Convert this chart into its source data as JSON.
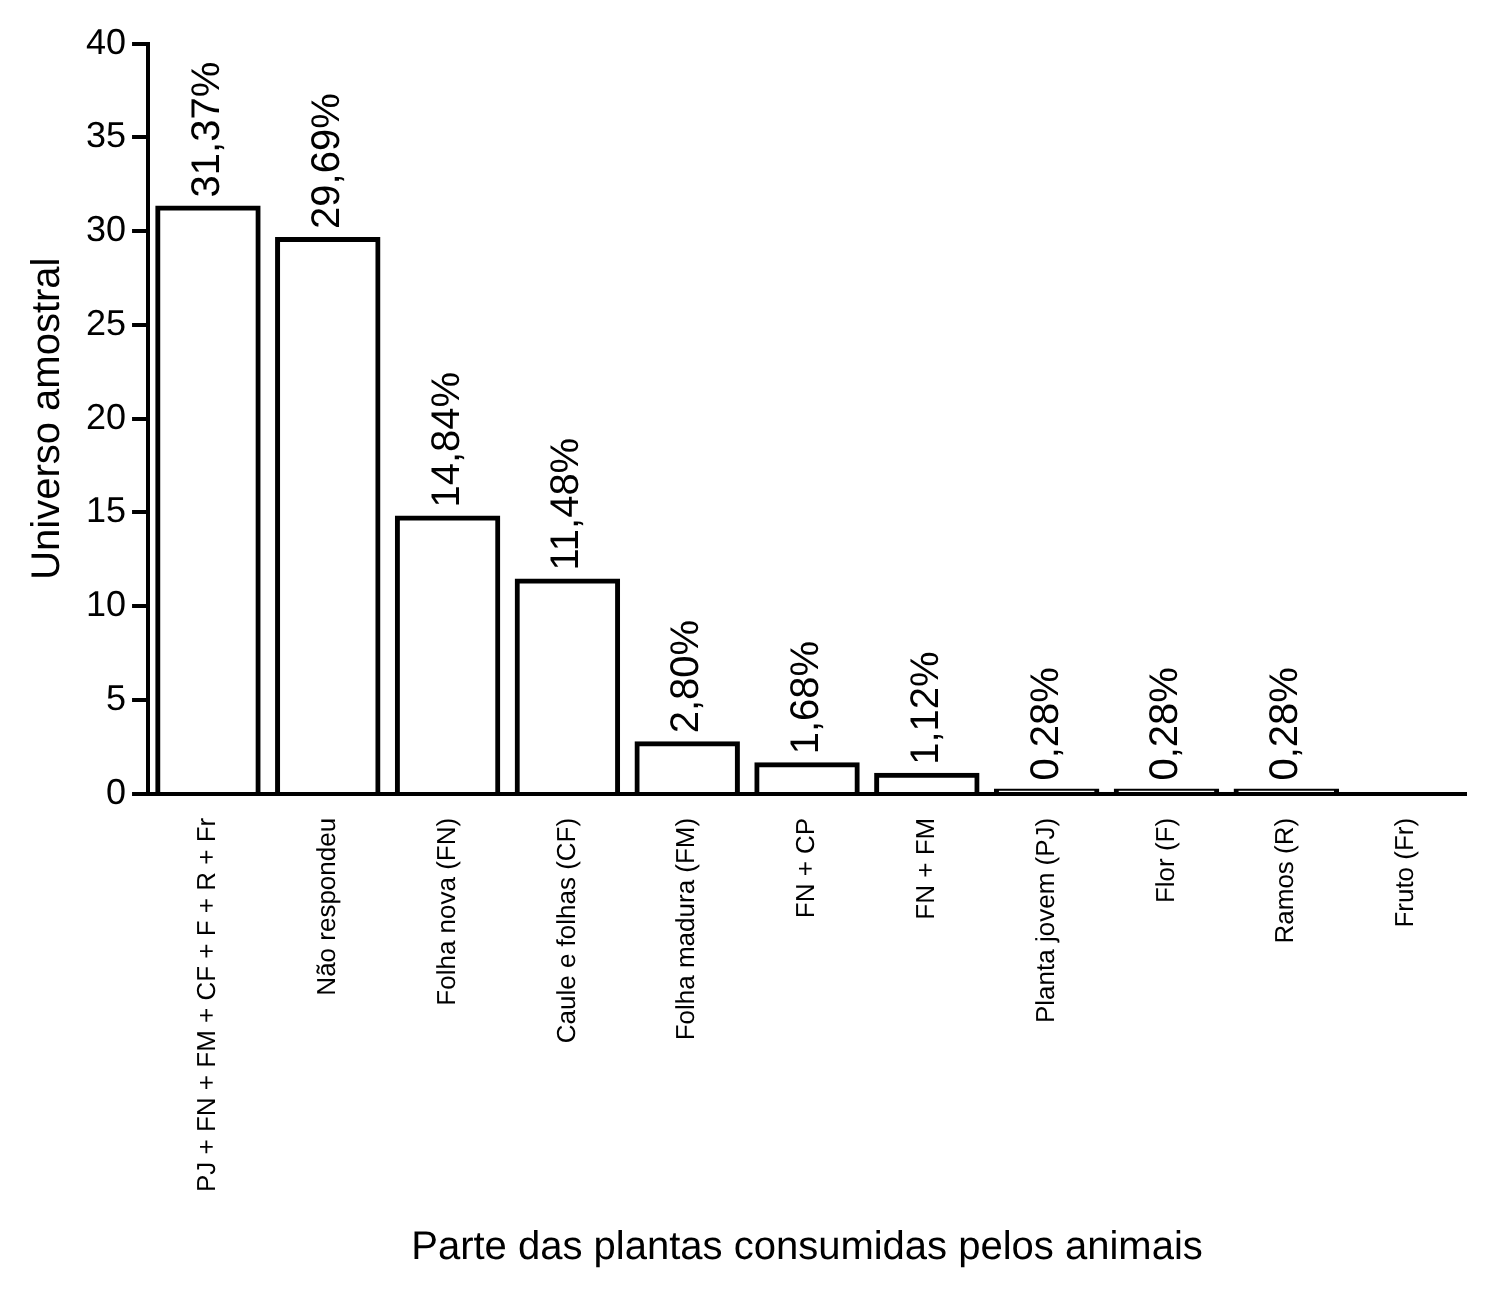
{
  "chart_data": {
    "type": "bar",
    "xlabel": "Parte das plantas consumidas pelos animais",
    "ylabel": "Universo amostral",
    "categories": [
      "PJ + FN + FM + CF + F + R + Fr",
      "Não respondeu",
      "Folha nova (FN)",
      "Caule e folhas (CF)",
      "Folha madura (FM)",
      "FN + CP",
      "FN + FM",
      "Planta jovem (PJ)",
      "Flor (F)",
      "Ramos (R)",
      "Fruto (Fr)"
    ],
    "values": [
      31.37,
      29.69,
      14.84,
      11.48,
      2.8,
      1.68,
      1.12,
      0.28,
      0.28,
      0.28,
      null
    ],
    "value_labels": [
      "31,37%",
      "29,69%",
      "14,84%",
      "11,48%",
      "2,80%",
      "1,68%",
      "1,12%",
      "0,28%",
      "0,28%",
      "0,28%",
      null
    ],
    "color": "#000000",
    "ylim": [
      0,
      40
    ],
    "yticks": [
      0,
      5,
      10,
      15,
      20,
      25,
      30,
      35,
      40
    ],
    "grid": false,
    "legend": false
  }
}
